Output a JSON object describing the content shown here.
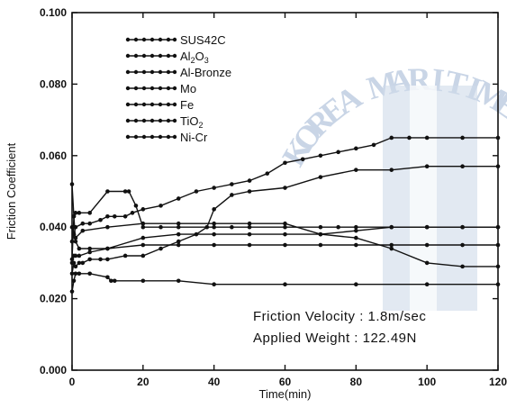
{
  "chart_data": {
    "type": "line",
    "xlabel": "Time(min)",
    "ylabel": "Friction Coefficient",
    "xlim": [
      0,
      120
    ],
    "ylim": [
      0,
      0.1
    ],
    "x_ticks": [
      "0",
      "20",
      "40",
      "60",
      "80",
      "100",
      "120"
    ],
    "y_ticks": [
      "0.000",
      "0.020",
      "0.040",
      "0.060",
      "0.080",
      "0.100"
    ],
    "legend_position": "top-left",
    "grid": false,
    "annotations": [
      "Friction Velocity : 1.8m/sec",
      "Applied Weight : 122.49N"
    ],
    "watermark": "KOREA MARITIME",
    "series": [
      {
        "name": "SUS42C",
        "marker": "dot",
        "x": [
          0,
          0.5,
          1,
          2,
          5,
          10,
          11,
          12,
          20,
          30,
          40,
          60,
          80,
          100,
          120
        ],
        "y": [
          0.022,
          0.025,
          0.027,
          0.027,
          0.027,
          0.026,
          0.025,
          0.025,
          0.025,
          0.025,
          0.024,
          0.024,
          0.024,
          0.024,
          0.024
        ]
      },
      {
        "name": "Al2O3",
        "marker": "dot",
        "x": [
          0,
          0.5,
          1,
          3,
          10,
          20,
          30,
          40,
          50,
          60,
          70,
          80,
          90,
          100,
          110,
          120
        ],
        "y": [
          0.04,
          0.038,
          0.037,
          0.039,
          0.04,
          0.041,
          0.041,
          0.041,
          0.041,
          0.041,
          0.038,
          0.037,
          0.034,
          0.03,
          0.029,
          0.029
        ]
      },
      {
        "name": "Al-Bronze",
        "marker": "dot",
        "x": [
          0,
          0.5,
          1,
          3,
          5,
          8,
          10,
          12,
          15,
          17,
          20,
          25,
          30,
          35,
          40,
          45,
          50,
          55,
          60,
          65,
          70,
          75,
          80,
          85,
          90,
          95,
          100,
          110,
          120
        ],
        "y": [
          0.036,
          0.038,
          0.04,
          0.041,
          0.041,
          0.042,
          0.043,
          0.043,
          0.043,
          0.044,
          0.045,
          0.046,
          0.048,
          0.05,
          0.051,
          0.052,
          0.053,
          0.055,
          0.058,
          0.059,
          0.06,
          0.061,
          0.062,
          0.063,
          0.065,
          0.065,
          0.065,
          0.065,
          0.065
        ]
      },
      {
        "name": "Mo",
        "marker": "dot",
        "x": [
          0,
          0.5,
          1,
          2,
          5,
          10,
          20,
          30,
          40,
          50,
          60,
          70,
          80,
          90,
          100,
          110,
          120
        ],
        "y": [
          0.052,
          0.043,
          0.036,
          0.034,
          0.034,
          0.034,
          0.035,
          0.035,
          0.035,
          0.035,
          0.035,
          0.035,
          0.035,
          0.035,
          0.035,
          0.035,
          0.035
        ]
      },
      {
        "name": "Fe",
        "marker": "dot",
        "x": [
          0,
          0.5,
          1,
          2,
          5,
          10,
          20,
          30,
          40,
          50,
          60,
          70,
          80,
          90,
          100,
          110,
          120
        ],
        "y": [
          0.03,
          0.032,
          0.032,
          0.032,
          0.033,
          0.034,
          0.037,
          0.038,
          0.038,
          0.038,
          0.038,
          0.038,
          0.039,
          0.04,
          0.04,
          0.04,
          0.04
        ]
      },
      {
        "name": "TiO2",
        "marker": "dot",
        "x": [
          0,
          0.5,
          1,
          2,
          5,
          10,
          15,
          16,
          18,
          20,
          25,
          30,
          40,
          45,
          50,
          60,
          70,
          75,
          80,
          90,
          100,
          110,
          120
        ],
        "y": [
          0.031,
          0.043,
          0.044,
          0.044,
          0.044,
          0.05,
          0.05,
          0.05,
          0.046,
          0.04,
          0.04,
          0.04,
          0.04,
          0.04,
          0.04,
          0.04,
          0.04,
          0.04,
          0.04,
          0.04,
          0.04,
          0.04,
          0.04
        ]
      },
      {
        "name": "Ni-Cr",
        "marker": "dot",
        "x": [
          0,
          0.5,
          1,
          2,
          3,
          5,
          8,
          10,
          15,
          20,
          25,
          30,
          35,
          38,
          40,
          45,
          50,
          60,
          70,
          80,
          90,
          100,
          110,
          120
        ],
        "y": [
          0.027,
          0.03,
          0.029,
          0.03,
          0.03,
          0.031,
          0.031,
          0.031,
          0.032,
          0.032,
          0.034,
          0.036,
          0.038,
          0.04,
          0.045,
          0.049,
          0.05,
          0.051,
          0.054,
          0.056,
          0.056,
          0.057,
          0.057,
          0.057
        ]
      }
    ]
  }
}
